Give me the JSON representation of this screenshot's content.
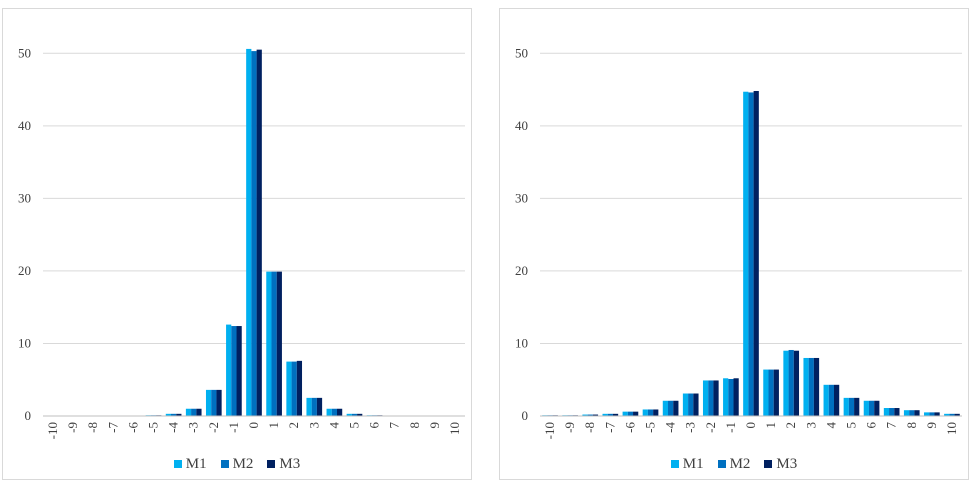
{
  "chart_data": [
    {
      "type": "bar",
      "title": "",
      "xlabel": "",
      "ylabel": "",
      "ylim": [
        0,
        55
      ],
      "yticks": [
        "0",
        "10",
        "20",
        "30",
        "40",
        "50"
      ],
      "grid": true,
      "legend_position": "bottom",
      "categories": [
        "-10",
        "-9",
        "-8",
        "-7",
        "-6",
        "-5",
        "-4",
        "-3",
        "-2",
        "-1",
        "0",
        "1",
        "2",
        "3",
        "4",
        "5",
        "6",
        "7",
        "8",
        "9",
        "10"
      ],
      "series": [
        {
          "name": "M1",
          "color": "#00b0f0",
          "values": [
            0,
            0,
            0,
            0,
            0,
            0.1,
            0.3,
            1.0,
            3.6,
            12.6,
            50.6,
            19.9,
            7.5,
            2.5,
            1.0,
            0.3,
            0.1,
            0,
            0,
            0,
            0
          ]
        },
        {
          "name": "M2",
          "color": "#0070c0",
          "values": [
            0,
            0,
            0,
            0,
            0,
            0.1,
            0.3,
            1.0,
            3.6,
            12.4,
            50.3,
            19.9,
            7.5,
            2.5,
            1.0,
            0.3,
            0.1,
            0,
            0,
            0,
            0
          ]
        },
        {
          "name": "M3",
          "color": "#002060",
          "values": [
            0,
            0,
            0,
            0,
            0,
            0.1,
            0.3,
            1.0,
            3.6,
            12.4,
            50.5,
            19.9,
            7.6,
            2.5,
            1.0,
            0.3,
            0.1,
            0,
            0,
            0,
            0
          ]
        }
      ]
    },
    {
      "type": "bar",
      "title": "",
      "xlabel": "",
      "ylabel": "",
      "ylim": [
        0,
        55
      ],
      "yticks": [
        "0",
        "10",
        "20",
        "30",
        "40",
        "50"
      ],
      "grid": true,
      "legend_position": "bottom",
      "categories": [
        "-10",
        "-9",
        "-8",
        "-7",
        "-6",
        "-5",
        "-4",
        "-3",
        "-2",
        "-1",
        "0",
        "1",
        "2",
        "3",
        "4",
        "5",
        "6",
        "7",
        "8",
        "9",
        "10"
      ],
      "series": [
        {
          "name": "M1",
          "color": "#00b0f0",
          "values": [
            0.1,
            0.1,
            0.2,
            0.3,
            0.6,
            0.9,
            2.1,
            3.1,
            4.9,
            5.2,
            44.7,
            6.4,
            9.0,
            8.0,
            4.3,
            2.5,
            2.1,
            1.1,
            0.8,
            0.5,
            0.3
          ]
        },
        {
          "name": "M2",
          "color": "#0070c0",
          "values": [
            0.1,
            0.1,
            0.2,
            0.3,
            0.6,
            0.9,
            2.1,
            3.1,
            4.9,
            5.1,
            44.6,
            6.4,
            9.1,
            8.0,
            4.3,
            2.5,
            2.1,
            1.1,
            0.8,
            0.5,
            0.3
          ]
        },
        {
          "name": "M3",
          "color": "#002060",
          "values": [
            0.1,
            0.1,
            0.2,
            0.3,
            0.6,
            0.9,
            2.1,
            3.1,
            4.9,
            5.2,
            44.8,
            6.4,
            9.0,
            8.0,
            4.3,
            2.5,
            2.1,
            1.1,
            0.8,
            0.5,
            0.3
          ]
        }
      ]
    }
  ]
}
